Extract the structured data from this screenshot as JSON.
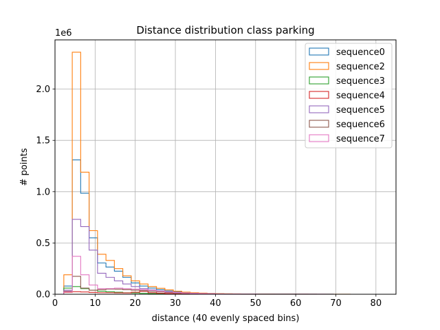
{
  "chart_data": {
    "type": "histogram",
    "title": "Distance distribution class parking",
    "xlabel": "distance (40 evenly spaced bins)",
    "ylabel": "# points",
    "y_offset_label": "1e6",
    "xlim": [
      0,
      85
    ],
    "ylim": [
      0,
      2480000
    ],
    "x_ticks": [
      0,
      10,
      20,
      30,
      40,
      50,
      60,
      70,
      80
    ],
    "y_ticks": [
      0,
      500000,
      1000000,
      1500000,
      2000000
    ],
    "y_tick_labels": [
      "0.0",
      "0.5",
      "1.0",
      "1.5",
      "2.0"
    ],
    "grid": true,
    "legend_position": "upper right",
    "bin_edges": [
      2.2,
      4.3,
      6.4,
      8.5,
      10.6,
      12.7,
      14.8,
      16.9,
      19.0,
      21.1,
      23.2,
      25.3,
      27.4,
      29.5,
      31.6,
      33.7,
      35.8,
      37.9,
      40.0,
      42.1,
      44.2,
      46.3,
      48.4,
      50.5,
      52.6,
      54.7,
      56.8,
      58.9,
      61.0,
      63.1,
      65.2,
      67.3,
      69.4,
      71.5,
      73.6,
      75.7,
      77.8,
      79.9,
      82.0,
      84.1,
      86.2
    ],
    "series": [
      {
        "name": "sequence0",
        "color": "#1f77b4",
        "values": [
          80000,
          1310000,
          985000,
          550000,
          305000,
          265000,
          225000,
          165000,
          110000,
          80000,
          60000,
          45000,
          32000,
          22000,
          15000,
          11000,
          8000,
          6000,
          4000,
          3000,
          2000,
          1500,
          1200,
          900,
          700,
          500,
          400,
          300,
          250,
          200,
          150,
          120,
          100,
          80,
          60,
          50,
          40,
          30,
          20,
          10
        ]
      },
      {
        "name": "sequence2",
        "color": "#ff7f0e",
        "values": [
          190000,
          2360000,
          1190000,
          620000,
          390000,
          330000,
          250000,
          180000,
          130000,
          100000,
          75000,
          58000,
          42000,
          30000,
          21000,
          15000,
          11000,
          8000,
          6000,
          4500,
          3500,
          2500,
          2000,
          1500,
          1200,
          900,
          700,
          500,
          400,
          300,
          250,
          200,
          150,
          120,
          100,
          80,
          60,
          40,
          30,
          20
        ]
      },
      {
        "name": "sequence3",
        "color": "#2ca02c",
        "values": [
          60000,
          75000,
          55000,
          40000,
          30000,
          25000,
          20000,
          15000,
          12000,
          9000,
          7000,
          5000,
          4000,
          3000,
          2500,
          2000,
          1500,
          1200,
          1000,
          800,
          600,
          500,
          400,
          300,
          250,
          200,
          150,
          120,
          100,
          80,
          60,
          50,
          40,
          30,
          25,
          20,
          15,
          10,
          8,
          5
        ]
      },
      {
        "name": "sequence4",
        "color": "#d62728",
        "values": [
          20000,
          25000,
          22000,
          18000,
          15000,
          15000,
          14000,
          13000,
          20000,
          28000,
          15000,
          10000,
          7000,
          5000,
          3500,
          2500,
          2000,
          1500,
          1200,
          1000,
          800,
          600,
          500,
          400,
          300,
          250,
          200,
          150,
          120,
          100,
          80,
          60,
          50,
          40,
          30,
          25,
          20,
          15,
          10,
          5
        ]
      },
      {
        "name": "sequence5",
        "color": "#9467bd",
        "values": [
          40000,
          730000,
          660000,
          430000,
          205000,
          165000,
          130000,
          100000,
          75000,
          55000,
          42000,
          32000,
          24000,
          18000,
          13000,
          10000,
          7500,
          5500,
          4000,
          3000,
          2200,
          1600,
          1200,
          900,
          700,
          500,
          400,
          300,
          250,
          200,
          150,
          120,
          100,
          80,
          60,
          50,
          40,
          30,
          20,
          10
        ]
      },
      {
        "name": "sequence6",
        "color": "#8c564b",
        "values": [
          30000,
          175000,
          60000,
          40000,
          45000,
          50000,
          50000,
          45000,
          40000,
          35000,
          28000,
          22000,
          16000,
          12000,
          9000,
          7000,
          5000,
          3500,
          2500,
          1800,
          1300,
          1000,
          800,
          600,
          450,
          350,
          250,
          200,
          150,
          120,
          100,
          80,
          60,
          50,
          40,
          30,
          20,
          15,
          10,
          5
        ]
      },
      {
        "name": "sequence7",
        "color": "#e377c2",
        "values": [
          25000,
          370000,
          190000,
          90000,
          55000,
          55000,
          60000,
          55000,
          50000,
          45000,
          38000,
          30000,
          22000,
          16000,
          11000,
          8000,
          6000,
          4500,
          3200,
          2400,
          1800,
          1300,
          1000,
          750,
          550,
          400,
          300,
          250,
          200,
          150,
          120,
          100,
          80,
          60,
          50,
          40,
          30,
          20,
          15,
          10
        ]
      }
    ]
  }
}
